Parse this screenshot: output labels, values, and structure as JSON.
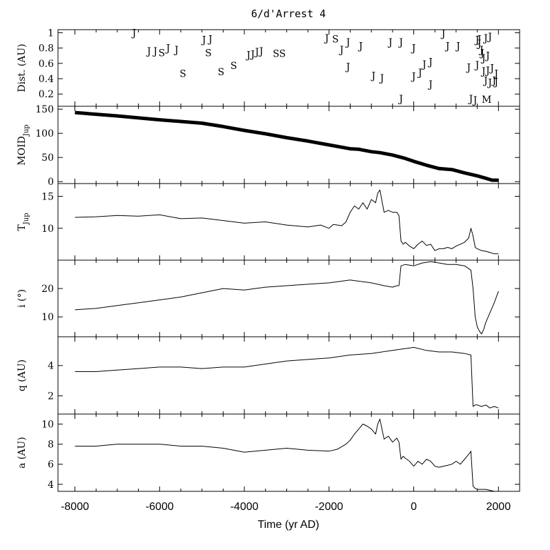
{
  "chart_data": {
    "type": "line",
    "title": "6/d'Arrest 4",
    "xlabel": "Time (yr AD)",
    "xlim": [
      -8400,
      2500
    ],
    "xticks": [
      -8000,
      -6000,
      -4000,
      -2000,
      0,
      2000
    ],
    "panels": [
      {
        "id": "dist",
        "ylabel": "Dist. (AU)",
        "ylim": [
          0.04,
          1.04
        ],
        "yticks": [
          0.2,
          0.4,
          0.6,
          0.8,
          1
        ],
        "type": "scatter-letters",
        "encounters": [
          {
            "x": -6600,
            "y": 1.0,
            "label": "J"
          },
          {
            "x": -6250,
            "y": 0.76,
            "label": "J"
          },
          {
            "x": -6100,
            "y": 0.76,
            "label": "J"
          },
          {
            "x": -5950,
            "y": 0.74,
            "label": "S"
          },
          {
            "x": -5800,
            "y": 0.8,
            "label": "J"
          },
          {
            "x": -5600,
            "y": 0.78,
            "label": "J"
          },
          {
            "x": -5450,
            "y": 0.47,
            "label": "S"
          },
          {
            "x": -4950,
            "y": 0.91,
            "label": "J"
          },
          {
            "x": -4800,
            "y": 0.92,
            "label": "J"
          },
          {
            "x": -4850,
            "y": 0.74,
            "label": "S"
          },
          {
            "x": -4550,
            "y": 0.49,
            "label": "S"
          },
          {
            "x": -4250,
            "y": 0.57,
            "label": "S"
          },
          {
            "x": -3900,
            "y": 0.71,
            "label": "J"
          },
          {
            "x": -3800,
            "y": 0.72,
            "label": "J"
          },
          {
            "x": -3700,
            "y": 0.75,
            "label": "J"
          },
          {
            "x": -3600,
            "y": 0.76,
            "label": "J"
          },
          {
            "x": -3250,
            "y": 0.73,
            "label": "S"
          },
          {
            "x": -3100,
            "y": 0.73,
            "label": "S"
          },
          {
            "x": -2050,
            "y": 0.93,
            "label": "J"
          },
          {
            "x": -1850,
            "y": 0.92,
            "label": "S"
          },
          {
            "x": -1700,
            "y": 0.78,
            "label": "J"
          },
          {
            "x": -1550,
            "y": 0.88,
            "label": "J"
          },
          {
            "x": -1550,
            "y": 0.56,
            "label": "J"
          },
          {
            "x": -1250,
            "y": 0.83,
            "label": "J"
          },
          {
            "x": -950,
            "y": 0.44,
            "label": "J"
          },
          {
            "x": -750,
            "y": 0.41,
            "label": "J"
          },
          {
            "x": -550,
            "y": 0.88,
            "label": "J"
          },
          {
            "x": -300,
            "y": 0.88,
            "label": "J"
          },
          {
            "x": -300,
            "y": 0.14,
            "label": "J"
          },
          {
            "x": 0,
            "y": 0.8,
            "label": "J"
          },
          {
            "x": 0,
            "y": 0.43,
            "label": "J"
          },
          {
            "x": 150,
            "y": 0.48,
            "label": "J"
          },
          {
            "x": 250,
            "y": 0.59,
            "label": "J"
          },
          {
            "x": 400,
            "y": 0.62,
            "label": "J"
          },
          {
            "x": 400,
            "y": 0.33,
            "label": "J"
          },
          {
            "x": 700,
            "y": 0.99,
            "label": "J"
          },
          {
            "x": 800,
            "y": 0.83,
            "label": "J"
          },
          {
            "x": 1050,
            "y": 0.83,
            "label": "J"
          },
          {
            "x": 1300,
            "y": 0.55,
            "label": "J"
          },
          {
            "x": 1350,
            "y": 0.14,
            "label": "J"
          },
          {
            "x": 1450,
            "y": 0.12,
            "label": "J"
          },
          {
            "x": 1500,
            "y": 0.58,
            "label": "J"
          },
          {
            "x": 1500,
            "y": 0.91,
            "label": "J"
          },
          {
            "x": 1550,
            "y": 0.92,
            "label": "J"
          },
          {
            "x": 1550,
            "y": 0.86,
            "label": "J"
          },
          {
            "x": 1600,
            "y": 0.78,
            "label": "J"
          },
          {
            "x": 1620,
            "y": 0.74,
            "label": "J"
          },
          {
            "x": 1650,
            "y": 0.67,
            "label": "J"
          },
          {
            "x": 1650,
            "y": 0.5,
            "label": "J"
          },
          {
            "x": 1700,
            "y": 0.93,
            "label": "J"
          },
          {
            "x": 1700,
            "y": 0.38,
            "label": "J"
          },
          {
            "x": 1720,
            "y": 0.13,
            "label": "M"
          },
          {
            "x": 1750,
            "y": 0.7,
            "label": "J"
          },
          {
            "x": 1750,
            "y": 0.51,
            "label": "J"
          },
          {
            "x": 1800,
            "y": 0.95,
            "label": "J"
          },
          {
            "x": 1800,
            "y": 0.35,
            "label": "J"
          },
          {
            "x": 1850,
            "y": 0.54,
            "label": "J"
          },
          {
            "x": 1900,
            "y": 0.38,
            "label": "J"
          },
          {
            "x": 1950,
            "y": 0.47,
            "label": "J"
          },
          {
            "x": 1950,
            "y": 0.36,
            "label": "J"
          }
        ]
      },
      {
        "id": "moid",
        "ylabel": "MOID",
        "ylabel_sub": "Jup",
        "ylim": [
          -4,
          156
        ],
        "yticks": [
          0,
          50,
          100,
          150
        ],
        "bold": true,
        "x": [
          -8000,
          -7000,
          -6000,
          -5000,
          -4500,
          -4000,
          -3500,
          -3000,
          -2500,
          -2000,
          -1500,
          -1300,
          -1000,
          -800,
          -500,
          -200,
          0,
          300,
          600,
          900,
          1200,
          1500,
          1700,
          1850,
          2000
        ],
        "y": [
          143,
          136,
          128,
          121,
          114,
          106,
          99,
          91,
          84,
          76,
          68,
          67,
          62,
          60,
          55,
          48,
          42,
          34,
          27,
          25,
          18,
          12,
          7,
          3,
          3
        ]
      },
      {
        "id": "tjup",
        "ylabel": "T",
        "ylabel_sub": "Jup",
        "ylim": [
          5,
          17
        ],
        "yticks": [
          10,
          15
        ],
        "x": [
          -8000,
          -7500,
          -7000,
          -6500,
          -6000,
          -5500,
          -5000,
          -4500,
          -4000,
          -3500,
          -3000,
          -2500,
          -2200,
          -2000,
          -1900,
          -1800,
          -1700,
          -1600,
          -1500,
          -1400,
          -1300,
          -1200,
          -1100,
          -1000,
          -900,
          -850,
          -800,
          -700,
          -600,
          -500,
          -400,
          -350,
          -300,
          -250,
          -200,
          -100,
          0,
          100,
          200,
          300,
          400,
          500,
          600,
          700,
          800,
          900,
          1000,
          1100,
          1200,
          1300,
          1350,
          1400,
          1450,
          1500,
          1600,
          1700,
          1800,
          1900,
          2000
        ],
        "y": [
          11.7,
          11.8,
          12.0,
          11.9,
          12.1,
          11.5,
          11.6,
          11.2,
          10.8,
          11.0,
          10.5,
          10.2,
          10.5,
          10.0,
          10.6,
          10.5,
          10.4,
          11.0,
          12.5,
          13.5,
          13.0,
          14.0,
          13.0,
          14.5,
          14.0,
          15.5,
          16.0,
          12.5,
          12.8,
          12.5,
          12.5,
          12.0,
          8.0,
          7.5,
          7.8,
          7.2,
          6.8,
          7.5,
          8.0,
          7.3,
          7.5,
          6.5,
          6.8,
          6.8,
          7.0,
          6.8,
          7.2,
          7.5,
          7.8,
          8.5,
          10.0,
          8.8,
          7.0,
          6.8,
          6.5,
          6.4,
          6.2,
          6.0,
          6.0
        ]
      },
      {
        "id": "incl",
        "ylabel": "i (°)",
        "ylim": [
          3,
          30
        ],
        "yticks": [
          10,
          20
        ],
        "x": [
          -8000,
          -7500,
          -7000,
          -6500,
          -6000,
          -5500,
          -5000,
          -4500,
          -4000,
          -3500,
          -3000,
          -2500,
          -2000,
          -1500,
          -1000,
          -700,
          -500,
          -400,
          -350,
          -300,
          -200,
          0,
          200,
          400,
          600,
          800,
          1000,
          1200,
          1350,
          1400,
          1450,
          1500,
          1550,
          1600,
          1650,
          1700,
          1800,
          1900,
          2000
        ],
        "y": [
          12.5,
          13.0,
          14.0,
          15.0,
          16.0,
          17.0,
          18.5,
          20.0,
          19.5,
          20.5,
          21.0,
          21.5,
          22.0,
          23.0,
          22.0,
          21.0,
          20.5,
          21.0,
          21.0,
          28.0,
          28.5,
          28.0,
          29.0,
          29.5,
          29.0,
          28.5,
          28.5,
          28.0,
          26.5,
          20.0,
          10.0,
          6.5,
          5.0,
          4.0,
          5.5,
          8.0,
          11.5,
          15.0,
          19.0
        ]
      },
      {
        "id": "q",
        "ylabel": "q (AU)",
        "ylim": [
          0.8,
          5.9
        ],
        "yticks": [
          2,
          4
        ],
        "x": [
          -8000,
          -7500,
          -7000,
          -6500,
          -6000,
          -5500,
          -5000,
          -4500,
          -4000,
          -3500,
          -3000,
          -2500,
          -2000,
          -1500,
          -1000,
          -500,
          0,
          300,
          600,
          900,
          1200,
          1350,
          1400,
          1450,
          1500,
          1600,
          1700,
          1800,
          1900,
          2000
        ],
        "y": [
          3.6,
          3.6,
          3.7,
          3.8,
          3.9,
          3.9,
          3.8,
          3.9,
          3.9,
          4.1,
          4.3,
          4.4,
          4.5,
          4.7,
          4.8,
          5.0,
          5.2,
          5.0,
          4.9,
          4.9,
          4.8,
          4.7,
          1.3,
          1.4,
          1.4,
          1.3,
          1.4,
          1.2,
          1.3,
          1.2
        ]
      },
      {
        "id": "a",
        "ylabel": "a (AU)",
        "ylim": [
          3.3,
          11
        ],
        "yticks": [
          4,
          6,
          8,
          10
        ],
        "x": [
          -8000,
          -7500,
          -7000,
          -6500,
          -6000,
          -5500,
          -5000,
          -4500,
          -4000,
          -3500,
          -3000,
          -2500,
          -2000,
          -1800,
          -1600,
          -1500,
          -1400,
          -1300,
          -1200,
          -1100,
          -1000,
          -900,
          -850,
          -800,
          -700,
          -600,
          -500,
          -400,
          -350,
          -300,
          -250,
          -200,
          -100,
          0,
          100,
          200,
          300,
          400,
          500,
          600,
          700,
          800,
          900,
          1000,
          1100,
          1200,
          1300,
          1350,
          1400,
          1450,
          1500,
          1600,
          1700,
          1800,
          1900,
          2000
        ],
        "y": [
          7.8,
          7.8,
          8.0,
          8.0,
          8.0,
          7.8,
          7.8,
          7.6,
          7.2,
          7.4,
          7.6,
          7.4,
          7.3,
          7.5,
          8.0,
          8.4,
          9.0,
          9.5,
          10.0,
          9.8,
          9.5,
          9.0,
          10.0,
          10.5,
          8.5,
          8.8,
          8.2,
          8.6,
          8.2,
          6.5,
          6.8,
          6.6,
          6.3,
          5.8,
          6.3,
          6.0,
          6.5,
          6.3,
          5.8,
          5.7,
          5.8,
          5.9,
          6.0,
          6.3,
          6.0,
          6.5,
          7.0,
          7.3,
          3.8,
          3.6,
          3.5,
          3.5,
          3.5,
          3.4,
          3.3,
          3.3
        ]
      }
    ]
  }
}
